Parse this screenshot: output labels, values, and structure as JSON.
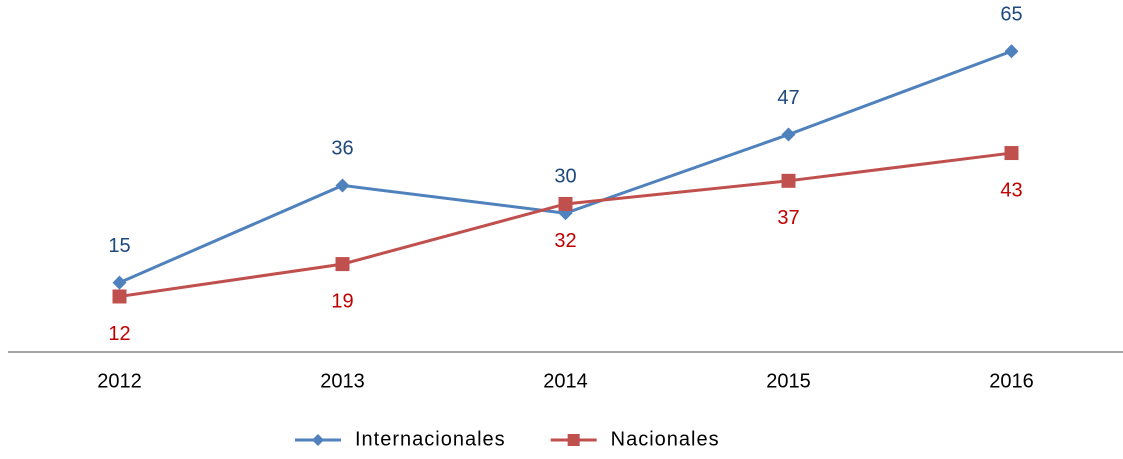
{
  "chart_data": {
    "type": "line",
    "categories": [
      "2012",
      "2013",
      "2014",
      "2015",
      "2016"
    ],
    "series": [
      {
        "name": "Internacionales",
        "color": "#4f81bd",
        "label_color": "#1f497d",
        "marker": "diamond",
        "label_position": "above",
        "values": [
          15,
          36,
          30,
          47,
          65
        ]
      },
      {
        "name": "Nacionales",
        "color": "#c0504d",
        "label_color": "#c00000",
        "marker": "square",
        "label_position": "below",
        "values": [
          12,
          19,
          32,
          37,
          43
        ]
      }
    ],
    "ylim": [
      0,
      75
    ],
    "legend": "bottom"
  }
}
